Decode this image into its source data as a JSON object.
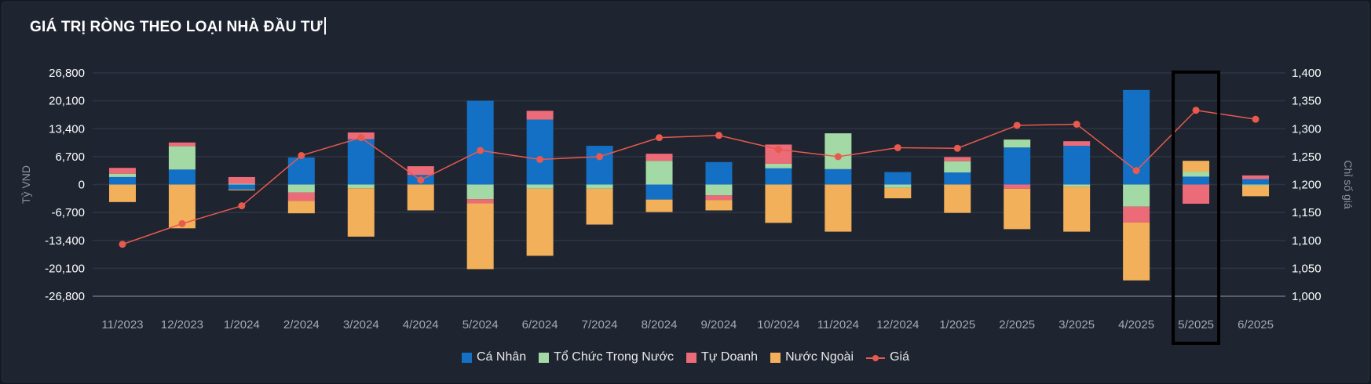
{
  "title": "GIÁ TRỊ RÒNG THEO LOẠI NHÀ ĐẦU TƯ",
  "colors": {
    "ca_nhan": "#1470c4",
    "to_chuc": "#a3d9a5",
    "tu_doanh": "#ec6b78",
    "nuoc_ngoai": "#f3b05a",
    "gia": "#e8594e",
    "highlight_box": "#000000"
  },
  "chart_data": {
    "type": "bar",
    "stacked": true,
    "title": "GIÁ TRỊ RÒNG THEO LOẠI NHÀ ĐẦU TƯ",
    "ylabel": "Tỷ VND",
    "y2label": "Chỉ số giá",
    "ylim": [
      -26800,
      26800
    ],
    "y_ticks": [
      "26,800",
      "20,100",
      "13,400",
      "6,700",
      "0",
      "-6,700",
      "-13,400",
      "-20,100",
      "-26,800"
    ],
    "y2lim": [
      1000,
      1400
    ],
    "y2_ticks": [
      "1,400",
      "1,350",
      "1,300",
      "1,250",
      "1,200",
      "1,150",
      "1,100",
      "1,050",
      "1,000"
    ],
    "grid": true,
    "legend_position": "bottom",
    "categories": [
      "11/2023",
      "12/2023",
      "1/2024",
      "2/2024",
      "3/2024",
      "4/2024",
      "5/2024",
      "6/2024",
      "7/2024",
      "8/2024",
      "9/2024",
      "10/2024",
      "11/2024",
      "12/2024",
      "1/2025",
      "2/2025",
      "3/2025",
      "4/2025",
      "5/2025",
      "6/2025"
    ],
    "series": [
      {
        "name": "Cá Nhân",
        "key": "ca_nhan",
        "values": [
          1800,
          3600,
          -1200,
          6500,
          10900,
          2300,
          20100,
          15600,
          9300,
          -3600,
          5400,
          3900,
          3700,
          3000,
          2900,
          8900,
          9300,
          22700,
          1900,
          1300
        ]
      },
      {
        "name": "Tổ Chức Trong Nước",
        "key": "to_chuc",
        "values": [
          800,
          5600,
          200,
          -1900,
          -900,
          0,
          -3500,
          -1000,
          -1000,
          5700,
          -2600,
          1100,
          8600,
          -800,
          2700,
          1900,
          -500,
          -5300,
          1200,
          -200
        ]
      },
      {
        "name": "Tự Doanh",
        "key": "tu_doanh",
        "values": [
          1400,
          900,
          1600,
          -2000,
          1600,
          2100,
          -1000,
          2100,
          0,
          1700,
          -1100,
          4600,
          0,
          0,
          1000,
          -1000,
          1100,
          -3800,
          -4600,
          900
        ]
      },
      {
        "name": "Nước Ngoài",
        "key": "nuoc_ngoai",
        "values": [
          -4200,
          -10500,
          -200,
          -3000,
          -11600,
          -6200,
          -15800,
          -16100,
          -8600,
          -3000,
          -2500,
          -9200,
          -11300,
          -2500,
          -6800,
          -9700,
          -10800,
          -13900,
          2600,
          -2600
        ]
      }
    ],
    "line": {
      "name": "Giá",
      "key": "gia",
      "values": [
        1093,
        1130,
        1162,
        1252,
        1284,
        1208,
        1261,
        1245,
        1250,
        1284,
        1288,
        1263,
        1250,
        1266,
        1265,
        1306,
        1308,
        1225,
        1333,
        1317
      ]
    },
    "highlight_category": "5/2025"
  },
  "legend": [
    {
      "label": "Cá Nhân",
      "key": "ca_nhan"
    },
    {
      "label": "Tổ Chức Trong Nước",
      "key": "to_chuc"
    },
    {
      "label": "Tự Doanh",
      "key": "tu_doanh"
    },
    {
      "label": "Nước Ngoài",
      "key": "nuoc_ngoai"
    },
    {
      "label": "Giá",
      "key": "gia"
    }
  ]
}
